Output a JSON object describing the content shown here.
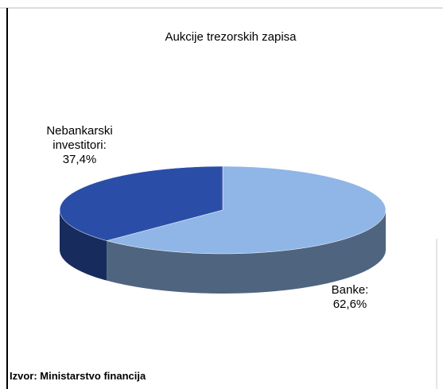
{
  "chart_data": {
    "type": "pie3d",
    "title": "Aukcije trezorskih zapisa",
    "categories": [
      "Banke:",
      "Nebankarski investitori:"
    ],
    "values": [
      62.6,
      37.4
    ],
    "value_labels": [
      "62,6%",
      "37,4%"
    ],
    "colors": [
      "#8fb6e6",
      "#2a4ea8"
    ],
    "source": "Izvor: Ministarstvo financija"
  }
}
